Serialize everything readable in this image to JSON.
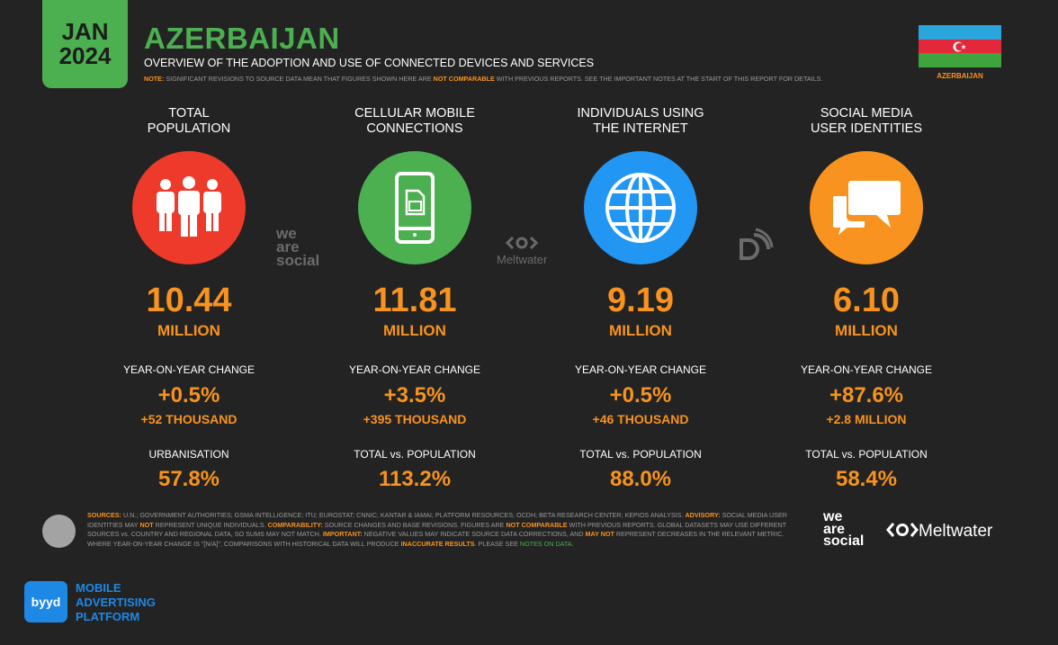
{
  "header": {
    "date_month": "JAN",
    "date_year": "2024",
    "title": "AZERBAIJAN",
    "subtitle": "OVERVIEW OF THE ADOPTION AND USE OF CONNECTED DEVICES AND SERVICES",
    "note_label": "NOTE:",
    "note_text_1": "SIGNIFICANT REVISIONS TO SOURCE DATA MEAN THAT FIGURES SHOWN HERE ARE",
    "note_highlight": "NOT COMPARABLE",
    "note_text_2": "WITH PREVIOUS REPORTS. SEE THE IMPORTANT NOTES AT THE START OF THIS REPORT FOR DETAILS.",
    "flag_label": "AZERBAIJAN"
  },
  "colors": {
    "green": "#4caf50",
    "orange": "#f7931e",
    "red": "#ee3a2b",
    "blue": "#2196f3",
    "flag_blue": "#2aa6dd",
    "flag_red": "#e3283a",
    "flag_green": "#3fa33e"
  },
  "columns": [
    {
      "title_1": "TOTAL",
      "title_2": "POPULATION",
      "icon": "people-icon",
      "value": "10.44",
      "unit": "MILLION",
      "yoy_label": "YEAR-ON-YEAR CHANGE",
      "yoy_pct": "+0.5%",
      "yoy_abs": "+52 THOUSAND",
      "sub_label": "URBANISATION",
      "sub_value": "57.8%"
    },
    {
      "title_1": "CELLULAR MOBILE",
      "title_2": "CONNECTIONS",
      "icon": "mobile-phone-icon",
      "value": "11.81",
      "unit": "MILLION",
      "yoy_label": "YEAR-ON-YEAR CHANGE",
      "yoy_pct": "+3.5%",
      "yoy_abs": "+395 THOUSAND",
      "sub_label": "TOTAL vs. POPULATION",
      "sub_value": "113.2%"
    },
    {
      "title_1": "INDIVIDUALS USING",
      "title_2": "THE INTERNET",
      "icon": "globe-icon",
      "value": "9.19",
      "unit": "MILLION",
      "yoy_label": "YEAR-ON-YEAR CHANGE",
      "yoy_pct": "+0.5%",
      "yoy_abs": "+46 THOUSAND",
      "sub_label": "TOTAL vs. POPULATION",
      "sub_value": "88.0%"
    },
    {
      "title_1": "SOCIAL MEDIA",
      "title_2": "USER IDENTITIES",
      "icon": "chat-bubbles-icon",
      "value": "6.10",
      "unit": "MILLION",
      "yoy_label": "YEAR-ON-YEAR CHANGE",
      "yoy_pct": "+87.6%",
      "yoy_abs": "+2.8 MILLION",
      "sub_label": "TOTAL vs. POPULATION",
      "sub_value": "58.4%"
    }
  ],
  "logos": {
    "was_1": "we",
    "was_2": "are",
    "was_3": "social",
    "meltwater": "Meltwater"
  },
  "footer": {
    "s1": "SOURCES:",
    "t1": "U.N.; GOVERNMENT AUTHORITIES; GSMA INTELLIGENCE; ITU; EUROSTAT; CNNIC; KANTAR & IAMAI; PLATFORM RESOURCES; OCDH; BETA RESEARCH CENTER; KEPIOS ANALYSIS.",
    "s2": "ADVISORY:",
    "t2": "SOCIAL MEDIA USER IDENTITIES MAY",
    "s3": "NOT",
    "t3": "REPRESENT UNIQUE INDIVIDUALS.",
    "s4": "COMPARABILITY:",
    "t4": "SOURCE CHANGES AND BASE REVISIONS. FIGURES ARE",
    "s5": "NOT COMPARABLE",
    "t5": "WITH PREVIOUS REPORTS. GLOBAL DATASETS MAY USE DIFFERENT SOURCES vs. COUNTRY AND REGIONAL DATA, SO SUMS MAY NOT MATCH.",
    "s6": "IMPORTANT:",
    "t6": "NEGATIVE VALUES MAY INDICATE SOURCE DATA CORRECTIONS, AND",
    "s7": "MAY NOT",
    "t7": "REPRESENT DECREASES IN THE RELEVANT METRIC. WHERE YEAR-ON-YEAR CHANGE IS \"[N/A]\", COMPARISONS WITH HISTORICAL DATA WILL PRODUCE",
    "s8": "INACCURATE RESULTS",
    "t8": ". PLEASE SEE",
    "s9": "NOTES ON DATA",
    "t9": "."
  },
  "sponsor": {
    "badge": "byyd",
    "line1": "MOBILE",
    "line2": "ADVERTISING",
    "line3": "PLATFORM"
  }
}
